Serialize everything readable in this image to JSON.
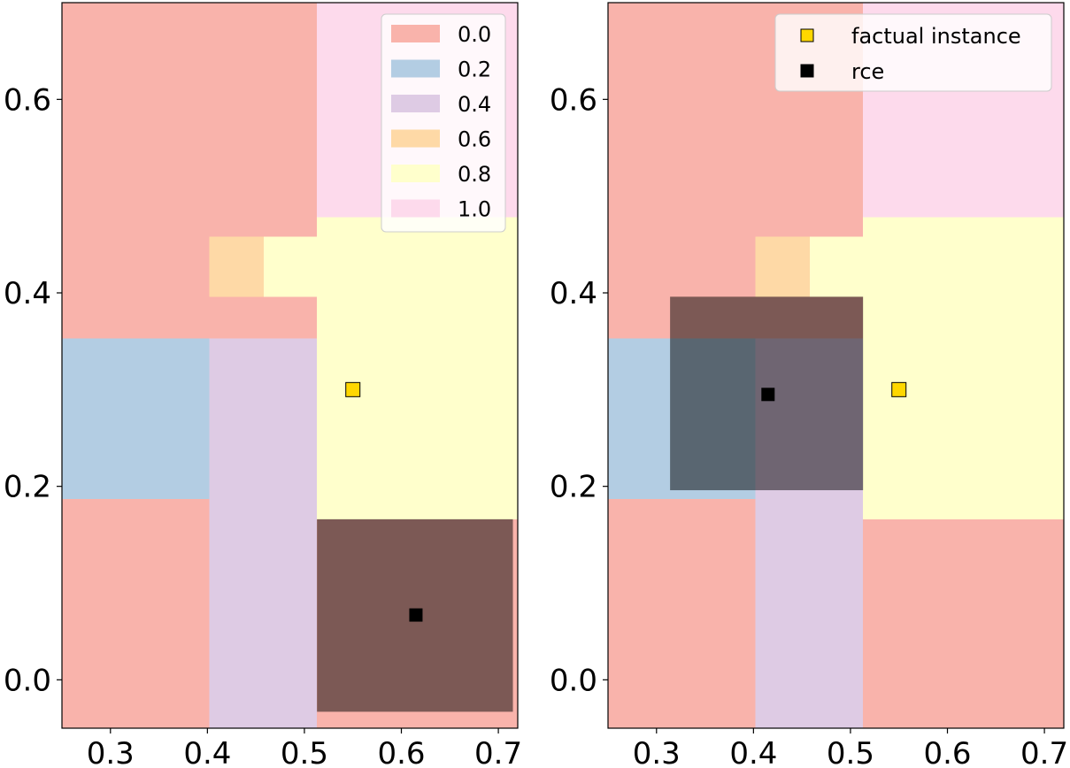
{
  "chart_data": [
    {
      "type": "heatmap",
      "title": "",
      "xlabel": "",
      "ylabel": "",
      "xlim": [
        0.25,
        0.72
      ],
      "ylim": [
        -0.05,
        0.7
      ],
      "xticks": [
        "0.3",
        "0.4",
        "0.5",
        "0.6",
        "0.7"
      ],
      "xtick_values": [
        0.3,
        0.4,
        0.5,
        0.6,
        0.7
      ],
      "yticks": [
        "0.0",
        "0.2",
        "0.4",
        "0.6"
      ],
      "ytick_values": [
        0.0,
        0.2,
        0.4,
        0.6
      ],
      "legend_position": "top-right",
      "legend": [
        {
          "label": "0.0",
          "color": "#f9b3ab"
        },
        {
          "label": "0.2",
          "color": "#b3cde3"
        },
        {
          "label": "0.4",
          "color": "#decbe4"
        },
        {
          "label": "0.6",
          "color": "#fed9a6"
        },
        {
          "label": "0.8",
          "color": "#ffffcc"
        },
        {
          "label": "1.0",
          "color": "#fddaec"
        }
      ],
      "regions": [
        {
          "x": [
            0.25,
            0.402
          ],
          "y": [
            0.353,
            0.7
          ],
          "value": 0.0
        },
        {
          "x": [
            0.402,
            0.513
          ],
          "y": [
            0.458,
            0.7
          ],
          "value": 0.0
        },
        {
          "x": [
            0.513,
            0.72
          ],
          "y": [
            0.478,
            0.7
          ],
          "value": 1.0
        },
        {
          "x": [
            0.402,
            0.458
          ],
          "y": [
            0.396,
            0.458
          ],
          "value": 0.6
        },
        {
          "x": [
            0.458,
            0.513
          ],
          "y": [
            0.396,
            0.458
          ],
          "value": 0.8
        },
        {
          "x": [
            0.513,
            0.72
          ],
          "y": [
            0.166,
            0.478
          ],
          "value": 0.8
        },
        {
          "x": [
            0.402,
            0.513
          ],
          "y": [
            0.353,
            0.396
          ],
          "value": 0.0
        },
        {
          "x": [
            0.25,
            0.402
          ],
          "y": [
            0.187,
            0.353
          ],
          "value": 0.2
        },
        {
          "x": [
            0.402,
            0.513
          ],
          "y": [
            -0.05,
            0.353
          ],
          "value": 0.4
        },
        {
          "x": [
            0.25,
            0.402
          ],
          "y": [
            -0.05,
            0.187
          ],
          "value": 0.0
        },
        {
          "x": [
            0.513,
            0.72
          ],
          "y": [
            -0.05,
            0.166
          ],
          "value": 0.0
        }
      ],
      "overlay_box": {
        "x": [
          0.513,
          0.715
        ],
        "y": [
          -0.033,
          0.166
        ],
        "color": "#000000",
        "opacity": 0.5
      },
      "points": [
        {
          "name": "factual instance",
          "x": 0.55,
          "y": 0.3,
          "color": "#ffd700"
        },
        {
          "name": "rce",
          "x": 0.615,
          "y": 0.067,
          "color": "#000000"
        }
      ]
    },
    {
      "type": "heatmap",
      "title": "",
      "xlabel": "",
      "ylabel": "",
      "xlim": [
        0.25,
        0.72
      ],
      "ylim": [
        -0.05,
        0.7
      ],
      "xticks": [
        "0.3",
        "0.4",
        "0.5",
        "0.6",
        "0.7"
      ],
      "xtick_values": [
        0.3,
        0.4,
        0.5,
        0.6,
        0.7
      ],
      "yticks": [
        "0.0",
        "0.2",
        "0.4",
        "0.6"
      ],
      "ytick_values": [
        0.0,
        0.2,
        0.4,
        0.6
      ],
      "legend_position": "top-right",
      "legend": [
        {
          "label": "factual instance",
          "marker": "square",
          "color": "#ffd700"
        },
        {
          "label": "rce",
          "marker": "square",
          "color": "#000000"
        }
      ],
      "regions": [
        {
          "x": [
            0.25,
            0.402
          ],
          "y": [
            0.353,
            0.7
          ],
          "value": 0.0
        },
        {
          "x": [
            0.402,
            0.513
          ],
          "y": [
            0.458,
            0.7
          ],
          "value": 0.0
        },
        {
          "x": [
            0.513,
            0.72
          ],
          "y": [
            0.478,
            0.7
          ],
          "value": 1.0
        },
        {
          "x": [
            0.402,
            0.458
          ],
          "y": [
            0.396,
            0.458
          ],
          "value": 0.6
        },
        {
          "x": [
            0.458,
            0.513
          ],
          "y": [
            0.396,
            0.458
          ],
          "value": 0.8
        },
        {
          "x": [
            0.513,
            0.72
          ],
          "y": [
            0.166,
            0.478
          ],
          "value": 0.8
        },
        {
          "x": [
            0.402,
            0.513
          ],
          "y": [
            0.353,
            0.396
          ],
          "value": 0.0
        },
        {
          "x": [
            0.25,
            0.402
          ],
          "y": [
            0.187,
            0.353
          ],
          "value": 0.2
        },
        {
          "x": [
            0.402,
            0.513
          ],
          "y": [
            -0.05,
            0.353
          ],
          "value": 0.4
        },
        {
          "x": [
            0.25,
            0.402
          ],
          "y": [
            -0.05,
            0.187
          ],
          "value": 0.0
        },
        {
          "x": [
            0.513,
            0.72
          ],
          "y": [
            -0.05,
            0.166
          ],
          "value": 0.0
        }
      ],
      "overlay_box": {
        "x": [
          0.314,
          0.513
        ],
        "y": [
          0.196,
          0.396
        ],
        "color": "#000000",
        "opacity": 0.5
      },
      "points": [
        {
          "name": "factual instance",
          "x": 0.55,
          "y": 0.3,
          "color": "#ffd700"
        },
        {
          "name": "rce",
          "x": 0.415,
          "y": 0.295,
          "color": "#000000"
        }
      ]
    }
  ]
}
